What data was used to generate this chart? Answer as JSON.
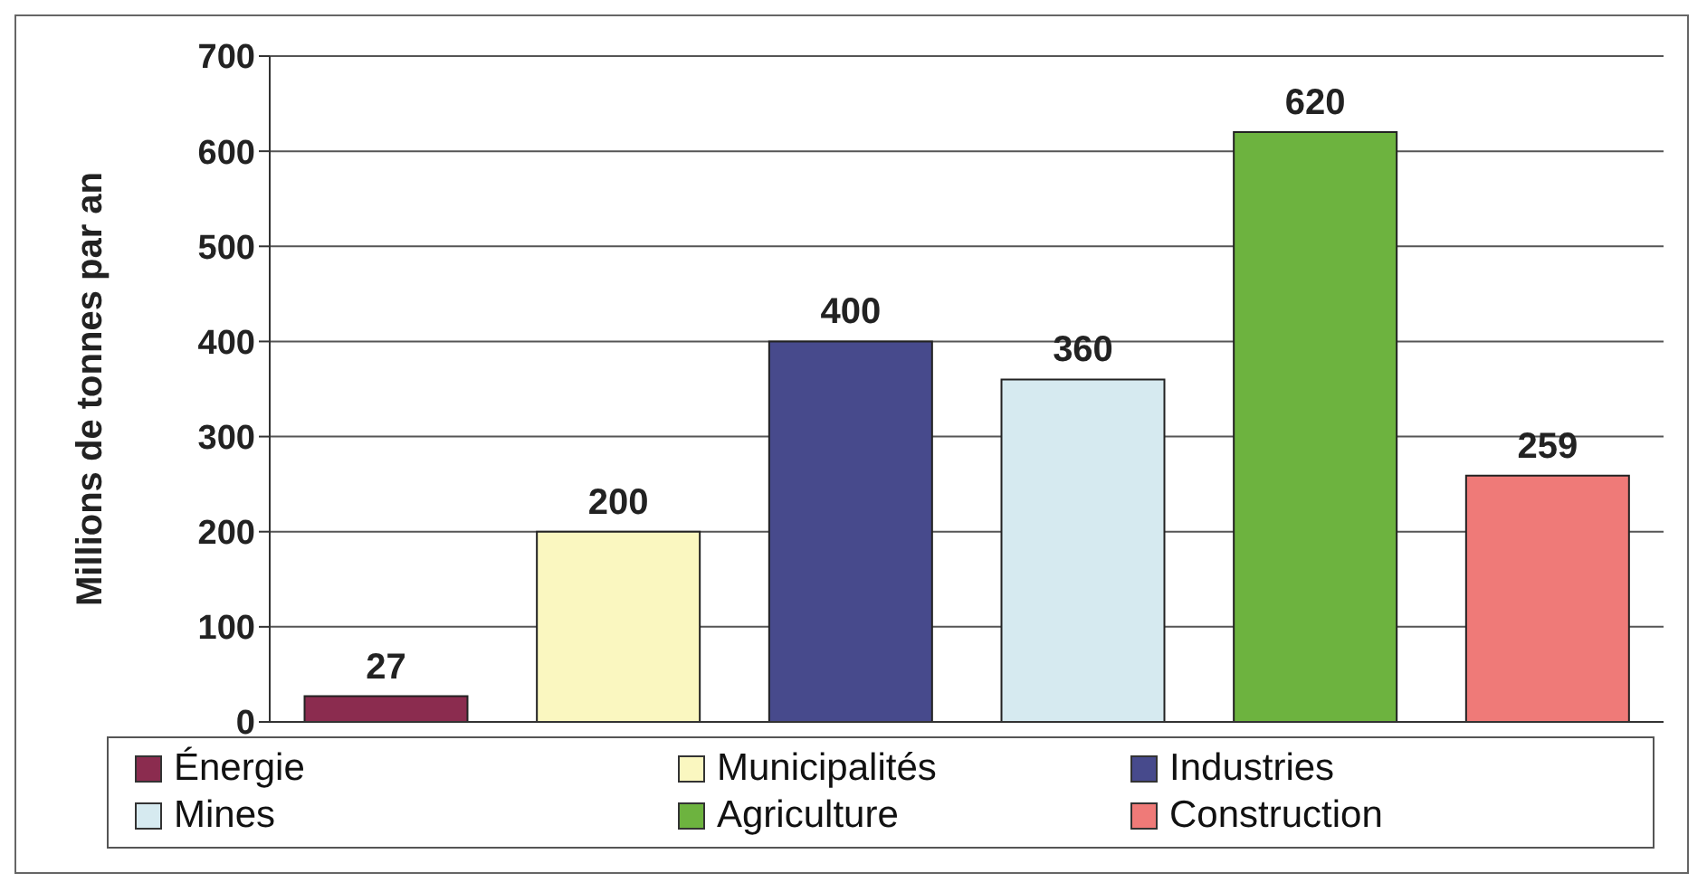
{
  "chart_data": {
    "type": "bar",
    "ylabel": "Millions de tonnes par an",
    "categories": [
      null,
      null,
      null,
      null,
      null,
      null
    ],
    "series": [
      {
        "name": "Énergie",
        "color": "#8b2c4f",
        "values": [
          27,
          null,
          null,
          null,
          null,
          null
        ]
      },
      {
        "name": "Municipalités",
        "color": "#faf7c0",
        "values": [
          null,
          200,
          null,
          null,
          null,
          null
        ]
      },
      {
        "name": "Industries",
        "color": "#474a8c",
        "values": [
          null,
          null,
          400,
          null,
          null,
          null
        ]
      },
      {
        "name": "Mines",
        "color": "#d6eaf0",
        "values": [
          null,
          null,
          null,
          360,
          null,
          null
        ]
      },
      {
        "name": "Agriculture",
        "color": "#6db33f",
        "values": [
          null,
          null,
          null,
          null,
          620,
          null
        ]
      },
      {
        "name": "Construction",
        "color": "#ef7a78",
        "values": [
          null,
          null,
          null,
          null,
          null,
          259
        ]
      }
    ],
    "stacked": true,
    "ylim": [
      0,
      700
    ],
    "yticks": [
      0,
      100,
      200,
      300,
      400,
      500,
      600,
      700
    ],
    "grid": "y",
    "legend": "bottom",
    "data_labels": true,
    "tick_labels": "y"
  }
}
